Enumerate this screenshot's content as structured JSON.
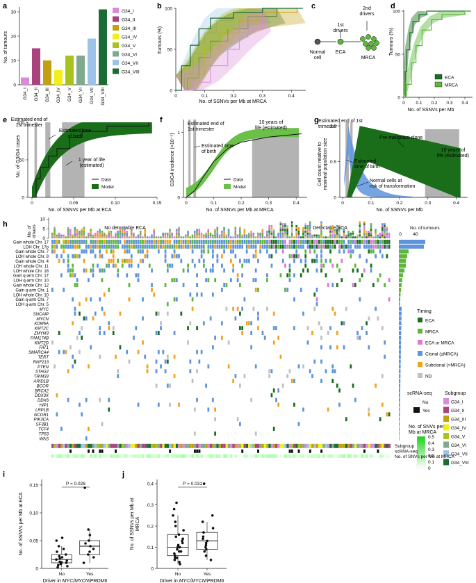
{
  "colors": {
    "g34": [
      "#d98ad9",
      "#a8437e",
      "#c3a012",
      "#f2ee1b",
      "#a8c21e",
      "#7faa8f",
      "#9dc3e8",
      "#1b6b36"
    ],
    "eca": "#1b6e1e",
    "mrca": "#5cb83a",
    "eca_or_mrca": "#df7ad9",
    "clonal": "#5e94de",
    "subclonal": "#f2a31d",
    "nd": "#c0c0c0",
    "model_dark": "#1a6e1a",
    "model_light": "#6bc04a",
    "grey_band": "#b3b3b3",
    "normal": "#5e94de"
  },
  "panel_a": {
    "letter": "a",
    "ylabel": "No. of tumours",
    "yticks": [
      "0",
      "10",
      "20",
      "30"
    ],
    "chart_data": {
      "type": "bar",
      "categories": [
        "G34_I",
        "G34_II",
        "G34_III",
        "G34_IV",
        "G34_V",
        "G34_VI",
        "G34_VII",
        "G34_VIII"
      ],
      "values": [
        3,
        15,
        10,
        6,
        12,
        12,
        19,
        31
      ],
      "ylim": [
        0,
        32
      ]
    },
    "legend": [
      "G34_I",
      "G34_II",
      "G34_III",
      "G34_IV",
      "G34_V",
      "G34_VI",
      "G34_VII",
      "G34_VIII"
    ]
  },
  "panel_b": {
    "letter": "b",
    "ylabel": "Tumours (%)",
    "xlabel": "No. of SSNVs per Mb at MRCA",
    "yticks": [
      "0",
      "50",
      "100"
    ],
    "xticks": [
      "0",
      "0.1",
      "0.2",
      "0.3",
      "0.4"
    ],
    "chart_data": {
      "type": "line",
      "xlim": [
        0,
        0.45
      ],
      "ylim": [
        0,
        100
      ],
      "series": [
        {
          "values": [
            [
              0,
              0
            ],
            [
              0.03,
              20
            ],
            [
              0.06,
              45
            ],
            [
              0.1,
              70
            ],
            [
              0.14,
              85
            ],
            [
              0.2,
              95
            ],
            [
              0.3,
              100
            ]
          ]
        },
        {
          "values": [
            [
              0,
              0
            ],
            [
              0.04,
              15
            ],
            [
              0.08,
              40
            ],
            [
              0.12,
              60
            ],
            [
              0.18,
              75
            ],
            [
              0.25,
              90
            ],
            [
              0.35,
              100
            ]
          ]
        },
        {
          "values": [
            [
              0,
              0
            ],
            [
              0.05,
              20
            ],
            [
              0.1,
              50
            ],
            [
              0.15,
              70
            ],
            [
              0.22,
              85
            ],
            [
              0.3,
              95
            ],
            [
              0.42,
              100
            ]
          ]
        },
        {
          "values": [
            [
              0,
              0
            ],
            [
              0.05,
              25
            ],
            [
              0.1,
              55
            ],
            [
              0.16,
              75
            ],
            [
              0.2,
              95
            ],
            [
              0.28,
              100
            ]
          ]
        },
        {
          "values": [
            [
              0,
              0
            ],
            [
              0.06,
              10
            ],
            [
              0.12,
              30
            ],
            [
              0.18,
              50
            ],
            [
              0.22,
              65
            ],
            [
              0.25,
              75
            ],
            [
              0.3,
              90
            ]
          ]
        }
      ]
    }
  },
  "panel_c": {
    "letter": "c",
    "first_drivers": "1st\ndrivers",
    "second_drivers": "2nd\ndrivers",
    "normal_cell": "Normal\ncell",
    "eca": "ECA",
    "mrca": "MRCA"
  },
  "panel_d": {
    "letter": "d",
    "ylabel": "Tumours (%)",
    "xlabel": "No. of SSNVs per Mb",
    "yticks": [
      "0",
      "50",
      "100"
    ],
    "xticks": [
      "0",
      "0.1",
      "0.2",
      "0.3",
      "0.4"
    ],
    "legend": [
      "ECA",
      "MRCA"
    ],
    "chart_data": {
      "type": "line",
      "xlim": [
        0,
        0.45
      ],
      "ylim": [
        0,
        100
      ],
      "series": [
        {
          "name": "ECA",
          "values": [
            [
              0,
              0
            ],
            [
              0.01,
              30
            ],
            [
              0.02,
              55
            ],
            [
              0.04,
              75
            ],
            [
              0.06,
              88
            ],
            [
              0.1,
              96
            ],
            [
              0.15,
              100
            ]
          ]
        },
        {
          "name": "MRCA",
          "values": [
            [
              0,
              0
            ],
            [
              0.02,
              15
            ],
            [
              0.05,
              40
            ],
            [
              0.08,
              60
            ],
            [
              0.12,
              78
            ],
            [
              0.18,
              90
            ],
            [
              0.25,
              96
            ],
            [
              0.4,
              100
            ]
          ]
        }
      ]
    }
  },
  "panel_e": {
    "letter": "e",
    "ylabel": "No. of G3/G4 cases",
    "xlabel": "No. of SSNVs per Mb at ECA",
    "yticks": [
      "0",
      "50",
      "100"
    ],
    "xticks": [
      "0",
      "0.05",
      "0.10",
      "0.15"
    ],
    "ann_trimester": "Estimated end of\n1st trimester",
    "ann_birth": "Estimated time\nof birth",
    "ann_year": "1 year of life\n(estimated)",
    "legend": [
      "Data",
      "Model"
    ],
    "chart_data": {
      "type": "line",
      "xlim": [
        -0.005,
        0.15
      ],
      "ylim": [
        0,
        100
      ],
      "series": [
        {
          "name": "Data",
          "values": [
            [
              0,
              0
            ],
            [
              0.005,
              25
            ],
            [
              0.01,
              40
            ],
            [
              0.02,
              55
            ],
            [
              0.03,
              65
            ],
            [
              0.045,
              80
            ],
            [
              0.06,
              88
            ],
            [
              0.09,
              95
            ],
            [
              0.14,
              100
            ]
          ]
        }
      ]
    }
  },
  "panel_f": {
    "letter": "f",
    "ylabel": "G3/G4 incidence (×10⁻⁵)",
    "xlabel": "No. of SSNVs per Mb at MRCA",
    "yticks": [
      "0",
      "1"
    ],
    "xticks": [
      "0",
      "0.1",
      "0.2",
      "0.3",
      "0.4"
    ],
    "ann_trimester": "Estimated end of\n1st trimester",
    "ann_birth": "Estimated time\nof birth",
    "ann_years": "10 years of\nlife (estimated)",
    "legend": [
      "Data",
      "Model"
    ],
    "chart_data": {
      "type": "line",
      "xlim": [
        -0.01,
        0.44
      ],
      "ylim": [
        0,
        1.2
      ],
      "series": [
        {
          "name": "Data",
          "values": [
            [
              0,
              0
            ],
            [
              0.03,
              0.1
            ],
            [
              0.06,
              0.3
            ],
            [
              0.1,
              0.55
            ],
            [
              0.15,
              0.75
            ],
            [
              0.2,
              0.85
            ],
            [
              0.3,
              0.93
            ],
            [
              0.42,
              0.98
            ]
          ]
        }
      ]
    }
  },
  "panel_g": {
    "letter": "g",
    "ylabel": "Cell count relative to\nmaximal population size",
    "xlabel": "No. of SSNVs per Mb",
    "yticks": [
      "0",
      "0.5",
      "1.0"
    ],
    "xticks": [
      "0",
      "0.1",
      "0.2",
      "0.3",
      "0.4"
    ],
    "ann_trimester": "Estimated end of 1st\ntrimester",
    "ann_premalignant": "Pre-malignant clone",
    "ann_birth": "Estimated\ntime of birth",
    "ann_normal": "Normal cells at\nrisk of transformation",
    "ann_years": "10 years of\nlife (estimated)"
  },
  "panel_h": {
    "letter": "h",
    "title_left": "No detectable ECA",
    "title_right": "Detectable ECA",
    "ylabel_top": "No. of\ndrivers",
    "yticks_top": [
      "0",
      "5",
      "10"
    ],
    "right_title": "No. of tumours",
    "right_ticks": [
      "0",
      "40"
    ],
    "rows": [
      "Gain whole Chr. 17",
      "LOH Chr. 17p",
      "Gain whole Chr. 7",
      "LOH whole Chr. 8",
      "Gain whole Chr. 4",
      "LOH whole Chr. 11",
      "LOH whole Chr. 18",
      "Gain q-arm Chr. 17",
      "LOH q-arm Chr. 10",
      "Gain whole Chr. 12",
      "Gain q-arm Chr. 1",
      "LOH whole Chr. 10",
      "Gain q-arm Chr. 7",
      "LOH q-arm Chr. 5",
      "MYC",
      "SNCAIP",
      "MYCN",
      "KDM6A",
      "KMT2C",
      "ZMYM3",
      "FAM174B",
      "KMT2D",
      "FAT1",
      "SMARCA4",
      "TERT",
      "RNF213",
      "PTEN",
      "STAG2",
      "TRIM33",
      "ARID1B",
      "BCOR",
      "BRCA2",
      "DDX3X",
      "DDX6",
      "HIP1",
      "LRP1B",
      "NCOR1",
      "PIK3CA",
      "SF3B1",
      "TCF4",
      "TP53",
      "WAS"
    ],
    "timing_title": "Timing",
    "timing": [
      "ECA",
      "MRCA",
      "ECA or MRCA",
      "Clonal (≤MRCA)",
      "Subclonal (>MRCA)",
      "ND"
    ],
    "scrna_title": "scRNA-seq",
    "scrna": [
      "No",
      "Yes"
    ],
    "subgroup_title": "Subgroup",
    "ssnv_title": "No. of SNVs per\nMb at MRCA",
    "ssnv_ticks": [
      "0.5",
      "0.4",
      "0.3",
      "0.2",
      "0.1",
      "0"
    ],
    "bottom_labels": [
      "Subgroup",
      "scRNA-seq",
      "No. of SNVs per Mb at MRCA"
    ]
  },
  "panel_i": {
    "letter": "i",
    "ylabel": "No. of SSNVs per Mb at ECA",
    "xlabel": "Driver in MYC/MYCN/PRDM6",
    "categories": [
      "No",
      "Yes"
    ],
    "yticks": [
      "0",
      "0.05",
      "0.10",
      "0.15"
    ],
    "pvalue": "P = 0.026",
    "chart_data": {
      "type": "scatter",
      "ylim": [
        0,
        0.16
      ],
      "series": [
        {
          "name": "No",
          "values": [
            0.002,
            0.004,
            0.006,
            0.008,
            0.01,
            0.011,
            0.012,
            0.014,
            0.016,
            0.018,
            0.02,
            0.022,
            0.025,
            0.03,
            0.035,
            0.04,
            0.05,
            0.055
          ]
        },
        {
          "name": "Yes",
          "values": [
            0.01,
            0.02,
            0.025,
            0.03,
            0.035,
            0.04,
            0.045,
            0.05,
            0.06,
            0.07,
            0.145
          ]
        }
      ]
    }
  },
  "panel_j": {
    "letter": "j",
    "ylabel": "No. of SSNVs per Mb at\nMRCA",
    "xlabel": "Driver in MYC/MYCN/PRDM6",
    "categories": [
      "No",
      "Yes"
    ],
    "yticks": [
      "0",
      "0.1",
      "0.2",
      "0.3",
      "0.4"
    ],
    "pvalue": "P = 0.031",
    "chart_data": {
      "type": "scatter",
      "ylim": [
        0,
        0.42
      ],
      "series": [
        {
          "name": "No",
          "values": [
            0.02,
            0.03,
            0.04,
            0.05,
            0.05,
            0.06,
            0.07,
            0.08,
            0.08,
            0.09,
            0.1,
            0.1,
            0.11,
            0.12,
            0.13,
            0.14,
            0.15,
            0.16,
            0.18,
            0.2,
            0.22,
            0.25,
            0.28,
            0.31
          ]
        },
        {
          "name": "Yes",
          "values": [
            0.04,
            0.06,
            0.08,
            0.09,
            0.1,
            0.11,
            0.12,
            0.13,
            0.14,
            0.15,
            0.17,
            0.19,
            0.22,
            0.25,
            0.4
          ]
        }
      ]
    }
  }
}
